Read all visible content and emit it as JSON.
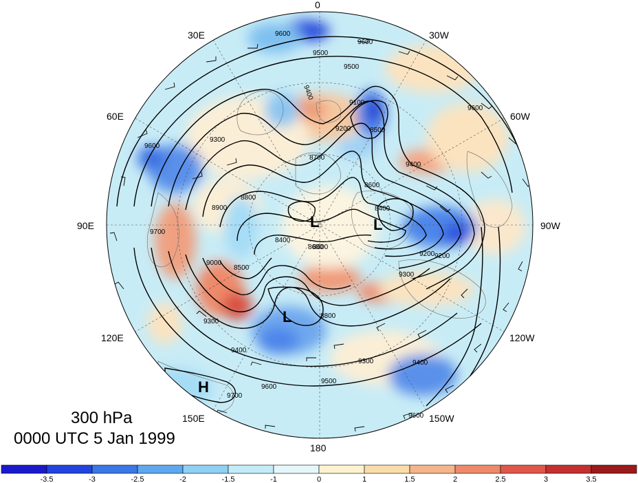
{
  "title": {
    "level": "300 hPa",
    "time": "0000 UTC 5 Jan 1999"
  },
  "longitude_labels": {
    "lon_0": "0",
    "lon_30w": "30W",
    "lon_60w": "60W",
    "lon_90w": "90W",
    "lon_120w": "120W",
    "lon_150w": "150W",
    "lon_180": "180",
    "lon_150e": "150E",
    "lon_120e": "120E",
    "lon_90e": "90E",
    "lon_60e": "60E",
    "lon_30e": "30E"
  },
  "pressure_centers": {
    "low_1": "L",
    "low_2": "L",
    "low_3": "L",
    "high_1": "H"
  },
  "contour_labels": [
    "9600",
    "9500",
    "9400",
    "9300",
    "9200",
    "9100",
    "9000",
    "8900",
    "8800",
    "8700",
    "8600",
    "8500",
    "8400",
    "9700",
    "9600",
    "9500",
    "9300",
    "9400",
    "9200",
    "9300",
    "8600",
    "8800",
    "8400",
    "8500",
    "8600",
    "9500",
    "9600",
    "9700",
    "9400",
    "9300",
    "9600",
    "9600",
    "9200",
    "9400",
    "9600"
  ],
  "colorbar": {
    "ticks": [
      "-3.5",
      "-3",
      "-2.5",
      "-2",
      "-1.5",
      "-1",
      "0",
      "1",
      "1.5",
      "2",
      "2.5",
      "3",
      "3.5"
    ],
    "colors": [
      "#1a1acc",
      "#2244dd",
      "#3a78e6",
      "#5ea8f0",
      "#8fd0f5",
      "#c4ecf8",
      "#e6f7fb",
      "#fdf3d0",
      "#f9dcaa",
      "#f4b58a",
      "#ee8a6a",
      "#e0574a",
      "#c43030",
      "#9b1a1a"
    ]
  },
  "chart_data": {
    "type": "polar stereographic map",
    "level": "300 hPa",
    "valid_time": "0000 UTC 5 Jan 1999",
    "fields": [
      "geopotential height contours (m)",
      "shaded anomaly",
      "wind barbs"
    ],
    "contour_interval_m": 100,
    "contour_values": [
      8400,
      8500,
      8600,
      8700,
      8800,
      8900,
      9000,
      9100,
      9200,
      9300,
      9400,
      9500,
      9600,
      9700
    ],
    "shading_levels": [
      -3.5,
      -3,
      -2.5,
      -2,
      -1.5,
      -1,
      0,
      1,
      1.5,
      2,
      2.5,
      3,
      3.5
    ],
    "centers": [
      {
        "type": "L",
        "near": "north pole / Arctic"
      },
      {
        "type": "L",
        "near": "Canadian Arctic"
      },
      {
        "type": "L",
        "near": "East Siberia / Bering"
      },
      {
        "type": "H",
        "near": "western Pacific"
      }
    ]
  }
}
